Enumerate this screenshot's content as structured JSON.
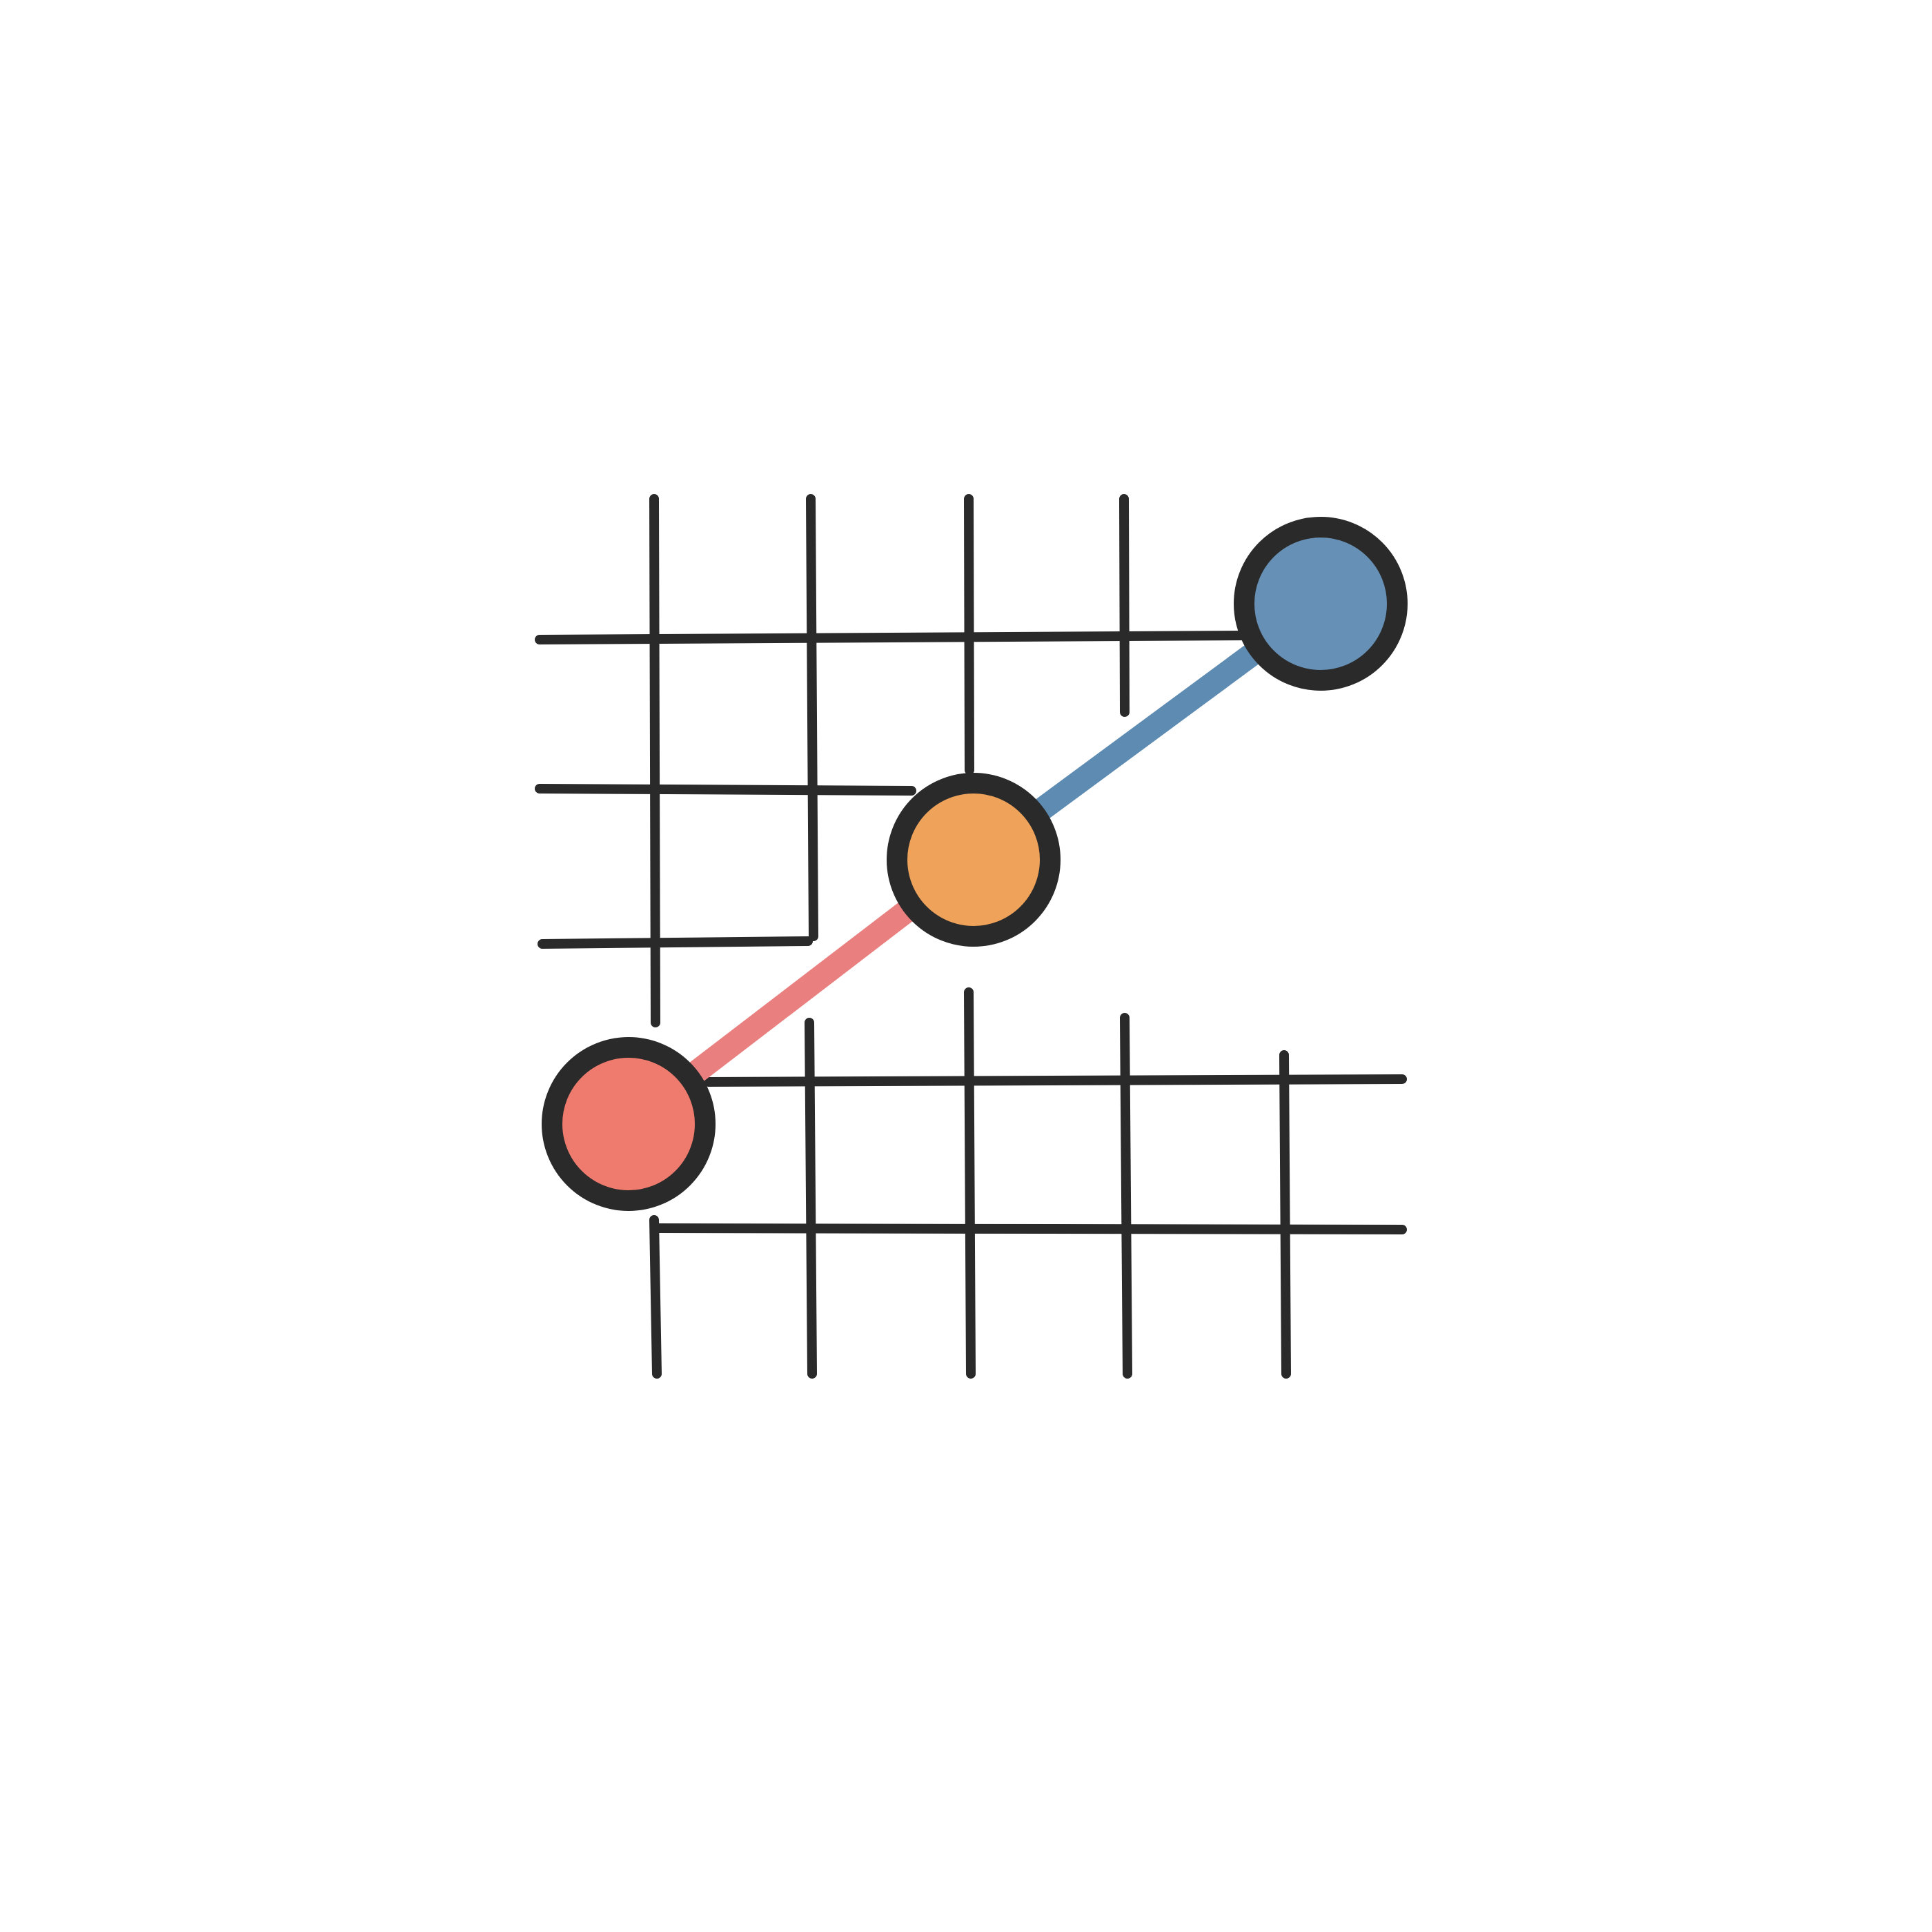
{
  "icon": {
    "name": "line-graph-grid-icon",
    "colors": {
      "background": "#ffffff",
      "grid": "#2a2a2a",
      "outline": "#2a2a2a",
      "point_low": "#ef7b6e",
      "point_mid": "#eea25a",
      "point_high": "#6690b5",
      "segment_low": "#e97f7f",
      "segment_high": "#5d8bb2"
    },
    "points": [
      {
        "name": "low-point",
        "color_key": "point_low"
      },
      {
        "name": "middle-point",
        "color_key": "point_mid"
      },
      {
        "name": "high-point",
        "color_key": "point_high"
      }
    ]
  }
}
